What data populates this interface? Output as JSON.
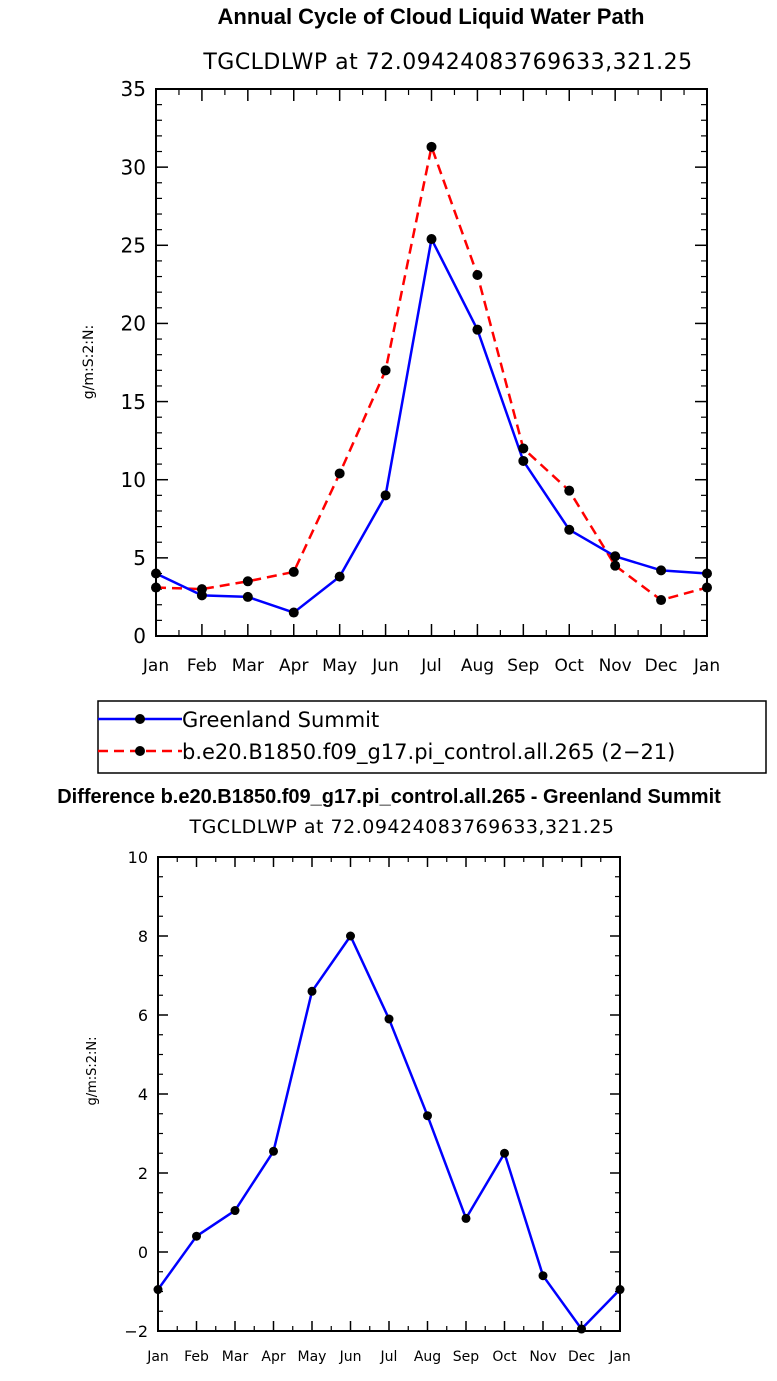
{
  "chart_data": [
    {
      "type": "line",
      "title": "Annual Cycle of Cloud Liquid Water Path",
      "subtitle": "TGCLDLWP  at  72.09424083769633,321.25",
      "xlabel": "",
      "ylabel": "g/m:S:2:N:",
      "categories": [
        "Jan",
        "Feb",
        "Mar",
        "Apr",
        "May",
        "Jun",
        "Jul",
        "Aug",
        "Sep",
        "Oct",
        "Nov",
        "Dec",
        "Jan"
      ],
      "ylim": [
        0,
        35
      ],
      "yticks": [
        0,
        5,
        10,
        15,
        20,
        25,
        30,
        35
      ],
      "series": [
        {
          "name": "Greenland Summit",
          "color": "#0000ff",
          "dash": "solid",
          "values": [
            4.0,
            2.6,
            2.5,
            1.5,
            3.8,
            9.0,
            25.4,
            19.6,
            11.2,
            6.8,
            5.1,
            4.2,
            4.0
          ]
        },
        {
          "name": "b.e20.B1850.f09_g17.pi_control.all.265 (2−21)",
          "color": "#ff0000",
          "dash": "dashed",
          "values": [
            3.1,
            3.0,
            3.5,
            4.1,
            10.4,
            17.0,
            31.3,
            23.1,
            12.0,
            9.3,
            4.5,
            2.3,
            3.1
          ]
        }
      ]
    },
    {
      "type": "line",
      "title": "Difference b.e20.B1850.f09_g17.pi_control.all.265 - Greenland Summit",
      "subtitle": "TGCLDLWP  at  72.09424083769633,321.25",
      "xlabel": "",
      "ylabel": "g/m:S:2:N:",
      "categories": [
        "Jan",
        "Feb",
        "Mar",
        "Apr",
        "May",
        "Jun",
        "Jul",
        "Aug",
        "Sep",
        "Oct",
        "Nov",
        "Dec",
        "Jan"
      ],
      "ylim": [
        -2,
        10
      ],
      "yticks": [
        -2,
        0,
        2,
        4,
        6,
        8,
        10
      ],
      "series": [
        {
          "name": "Difference",
          "color": "#0000ff",
          "dash": "solid",
          "values": [
            -0.95,
            0.4,
            1.05,
            2.55,
            6.6,
            8.0,
            5.9,
            3.45,
            0.85,
            2.5,
            -0.6,
            -1.95,
            -0.95
          ]
        }
      ]
    }
  ]
}
